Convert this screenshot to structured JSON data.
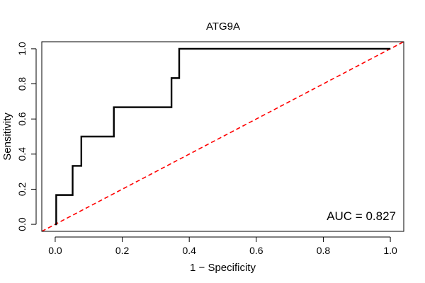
{
  "chart_data": {
    "type": "line",
    "title": "ATG9A",
    "xlabel": "1 − Specificity",
    "ylabel": "Sensitivity",
    "xlim": [
      -0.04,
      1.04
    ],
    "ylim": [
      -0.04,
      1.04
    ],
    "xticks": [
      0.0,
      0.2,
      0.4,
      0.6,
      0.8,
      1.0
    ],
    "yticks": [
      0.0,
      0.2,
      0.4,
      0.6,
      0.8,
      1.0
    ],
    "xtick_labels": [
      "0.0",
      "0.2",
      "0.4",
      "0.6",
      "0.8",
      "1.0"
    ],
    "ytick_labels": [
      "0.0",
      "0.2",
      "0.4",
      "0.6",
      "0.8",
      "1.0"
    ],
    "grid": false,
    "series": [
      {
        "name": "ROC curve",
        "color": "#000000",
        "style": "solid",
        "points": [
          [
            0.0,
            0.0
          ],
          [
            0.003,
            0.0
          ],
          [
            0.003,
            0.167
          ],
          [
            0.052,
            0.167
          ],
          [
            0.052,
            0.333
          ],
          [
            0.078,
            0.333
          ],
          [
            0.078,
            0.5
          ],
          [
            0.175,
            0.5
          ],
          [
            0.175,
            0.667
          ],
          [
            0.347,
            0.667
          ],
          [
            0.347,
            0.833
          ],
          [
            0.37,
            0.833
          ],
          [
            0.37,
            1.0
          ],
          [
            1.0,
            1.0
          ]
        ]
      },
      {
        "name": "reference diagonal",
        "color": "#ff0000",
        "style": "dashed",
        "points": [
          [
            -0.04,
            -0.04
          ],
          [
            1.04,
            1.04
          ]
        ]
      }
    ],
    "annotations": [
      {
        "text": "AUC = 0.827",
        "position": "bottom-right"
      }
    ]
  }
}
